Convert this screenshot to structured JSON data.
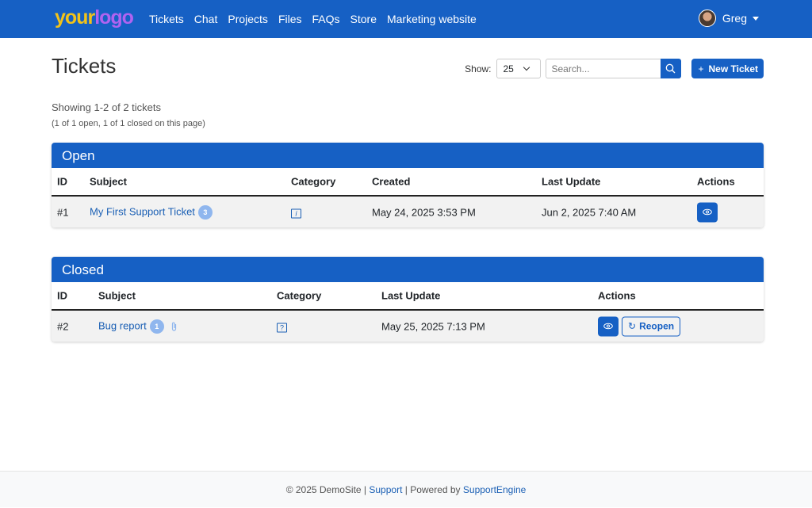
{
  "nav": {
    "logo_a": "your",
    "logo_b": "logo",
    "links": [
      "Tickets",
      "Chat",
      "Projects",
      "Files",
      "FAQs",
      "Store",
      "Marketing website"
    ],
    "user": "Greg"
  },
  "page": {
    "title": "Tickets",
    "show_label": "Show:",
    "show_value": "25",
    "search_placeholder": "Search...",
    "new_ticket": "New Ticket",
    "showing": "Showing 1-2 of 2 tickets",
    "summary": "(1 of 1 open, 1 of 1 closed on this page)"
  },
  "open": {
    "title": "Open",
    "headers": [
      "ID",
      "Subject",
      "Category",
      "Created",
      "Last Update",
      "Actions"
    ],
    "rows": [
      {
        "id": "#1",
        "subject": "My First Support Ticket",
        "replies": "3",
        "category_icon": "info-icon",
        "created": "May 24, 2025 3:53 PM",
        "updated": "Jun 2, 2025 7:40 AM"
      }
    ]
  },
  "closed": {
    "title": "Closed",
    "headers": [
      "ID",
      "Subject",
      "Category",
      "Last Update",
      "Actions"
    ],
    "rows": [
      {
        "id": "#2",
        "subject": "Bug report",
        "replies": "1",
        "attachment": true,
        "category_icon": "question-icon",
        "updated": "May 25, 2025 7:13 PM",
        "reopen": "Reopen"
      }
    ]
  },
  "footer": {
    "copy": "© 2025 DemoSite | ",
    "support": "Support",
    "sep": " | Powered by ",
    "engine": "SupportEngine"
  },
  "colors": {
    "primary": "#1660c4",
    "badge": "#8fb6ee"
  }
}
